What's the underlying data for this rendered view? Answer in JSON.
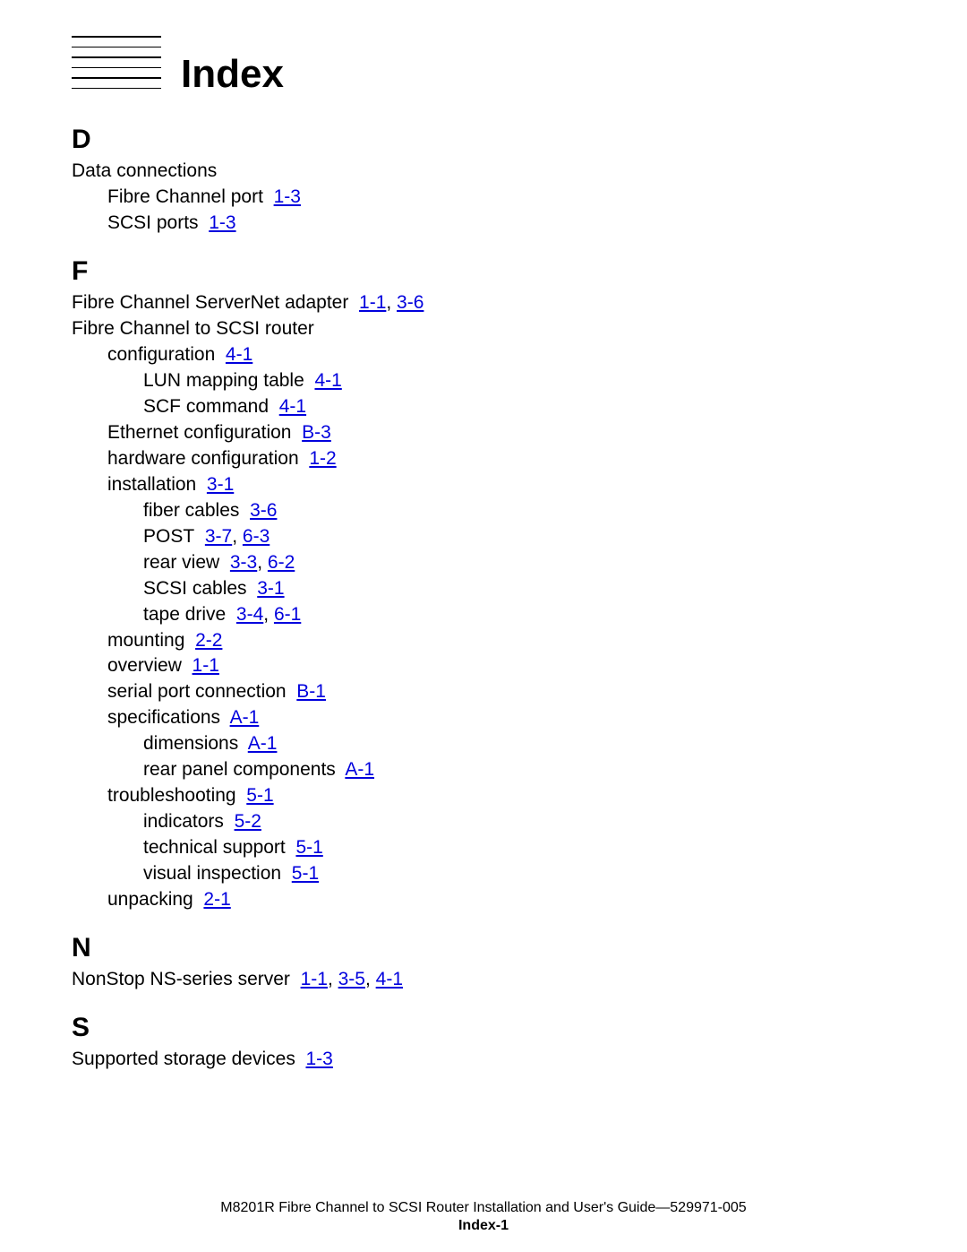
{
  "title": "Index",
  "link_color": "#0000dd",
  "text_color": "#000000",
  "background_color": "#ffffff",
  "title_fontsize_pt": 33,
  "letter_fontsize_pt": 22,
  "body_fontsize_pt": 16,
  "footer_fontsize_pt": 12,
  "sections": [
    {
      "letter": "D",
      "entries": [
        {
          "level": 0,
          "text": "Data connections",
          "refs": []
        },
        {
          "level": 1,
          "text": "Fibre Channel port",
          "refs": [
            "1-3"
          ]
        },
        {
          "level": 1,
          "text": "SCSI ports",
          "refs": [
            "1-3"
          ]
        }
      ]
    },
    {
      "letter": "F",
      "entries": [
        {
          "level": 0,
          "text": "Fibre Channel ServerNet adapter",
          "refs": [
            "1-1",
            "3-6"
          ]
        },
        {
          "level": 0,
          "text": "Fibre Channel to SCSI router",
          "refs": []
        },
        {
          "level": 1,
          "text": "configuration",
          "refs": [
            "4-1"
          ]
        },
        {
          "level": 2,
          "text": "LUN mapping table",
          "refs": [
            "4-1"
          ]
        },
        {
          "level": 2,
          "text": "SCF command",
          "refs": [
            "4-1"
          ]
        },
        {
          "level": 1,
          "text": "Ethernet configuration",
          "refs": [
            "B-3"
          ]
        },
        {
          "level": 1,
          "text": "hardware configuration",
          "refs": [
            "1-2"
          ]
        },
        {
          "level": 1,
          "text": "installation",
          "refs": [
            "3-1"
          ]
        },
        {
          "level": 2,
          "text": "fiber cables",
          "refs": [
            "3-6"
          ]
        },
        {
          "level": 2,
          "text": "POST",
          "refs": [
            "3-7",
            "6-3"
          ]
        },
        {
          "level": 2,
          "text": "rear view",
          "refs": [
            "3-3",
            "6-2"
          ]
        },
        {
          "level": 2,
          "text": "SCSI cables",
          "refs": [
            "3-1"
          ]
        },
        {
          "level": 2,
          "text": "tape drive",
          "refs": [
            "3-4",
            "6-1"
          ]
        },
        {
          "level": 1,
          "text": "mounting",
          "refs": [
            "2-2"
          ]
        },
        {
          "level": 1,
          "text": "overview",
          "refs": [
            "1-1"
          ]
        },
        {
          "level": 1,
          "text": "serial port connection",
          "refs": [
            "B-1"
          ]
        },
        {
          "level": 1,
          "text": "specifications",
          "refs": [
            "A-1"
          ]
        },
        {
          "level": 2,
          "text": "dimensions",
          "refs": [
            "A-1"
          ]
        },
        {
          "level": 2,
          "text": "rear panel components",
          "refs": [
            "A-1"
          ]
        },
        {
          "level": 1,
          "text": "troubleshooting",
          "refs": [
            "5-1"
          ]
        },
        {
          "level": 2,
          "text": "indicators",
          "refs": [
            "5-2"
          ]
        },
        {
          "level": 2,
          "text": "technical support",
          "refs": [
            "5-1"
          ]
        },
        {
          "level": 2,
          "text": "visual inspection",
          "refs": [
            "5-1"
          ]
        },
        {
          "level": 1,
          "text": "unpacking",
          "refs": [
            "2-1"
          ]
        }
      ]
    },
    {
      "letter": "N",
      "entries": [
        {
          "level": 0,
          "text": "NonStop NS-series server",
          "refs": [
            "1-1",
            "3-5",
            "4-1"
          ]
        }
      ]
    },
    {
      "letter": "S",
      "entries": [
        {
          "level": 0,
          "text": "Supported storage devices",
          "refs": [
            "1-3"
          ]
        }
      ]
    }
  ],
  "footer": {
    "line1": "M8201R Fibre Channel to SCSI Router Installation and User's Guide—529971-005",
    "line2": "Index-1"
  }
}
